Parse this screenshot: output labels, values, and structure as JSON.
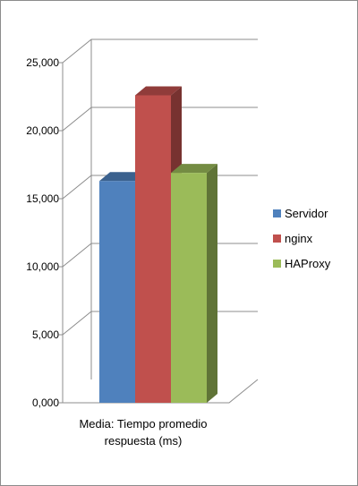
{
  "chart_data": {
    "type": "bar",
    "style": "3d-clustered-column",
    "categories": [
      "Media: Tiempo promedio respuesta (ms)"
    ],
    "category_label_lines": [
      "Media: Tiempo promedio",
      "respuesta (ms)"
    ],
    "series": [
      {
        "name": "Servidor",
        "values": [
          16300
        ],
        "color": "#4f81bd"
      },
      {
        "name": "nginx",
        "values": [
          22600
        ],
        "color": "#c0504d"
      },
      {
        "name": "HAProxy",
        "values": [
          16900
        ],
        "color": "#9bbb59"
      }
    ],
    "yticks": [
      "0,000",
      "5,000",
      "10,000",
      "15,000",
      "20,000",
      "25,000"
    ],
    "ylim": [
      0,
      25000
    ],
    "grid": true,
    "legend": "right",
    "title": "",
    "xlabel": "",
    "ylabel": ""
  }
}
